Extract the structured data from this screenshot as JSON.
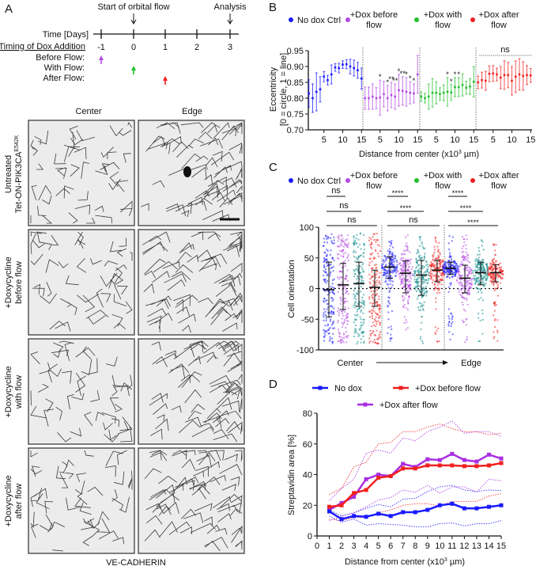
{
  "panel_labels": {
    "a": "A",
    "b": "B",
    "c": "C",
    "d": "D"
  },
  "panel_a": {
    "start_flow": "Start of orbital flow",
    "analysis": "Analysis",
    "time_label": "Time [Days]",
    "timing_label": "Timing of Dox Addition",
    "days": [
      "-1",
      "0",
      "1",
      "2",
      "3"
    ],
    "rows": [
      "Before Flow:",
      "With Flow:",
      "After Flow:"
    ],
    "arrow_colors": [
      "#b44be1",
      "#22c02a",
      "#f02020"
    ],
    "columns": [
      "Center",
      "Edge"
    ],
    "row_labels": [
      {
        "line1": "Untreated",
        "line2": "Tet-ON-PIK3CA",
        "sup": "E542K"
      },
      {
        "line1": "+Doxycycline",
        "line2": "before flow"
      },
      {
        "line1": "+Doxycycline",
        "line2": "with flow"
      },
      {
        "line1": "+Doxycycline",
        "line2": "after flow"
      }
    ],
    "stain": "VE-CADHERIN"
  },
  "chart_data": [
    {
      "id": "B",
      "type": "scatter",
      "legend": [
        {
          "name": "No dox Ctrl",
          "color": "#1a1aff"
        },
        {
          "name": "+Dox before flow",
          "line1": "+Dox before",
          "line2": "flow",
          "color": "#b44be1"
        },
        {
          "name": "+Dox with flow",
          "line1": "+Dox with",
          "line2": "flow",
          "color": "#22c02a"
        },
        {
          "name": "+Dox after flow",
          "line1": "+Dox after",
          "line2": "flow",
          "color": "#f02020"
        }
      ],
      "ylabel_1": "Eccentricity",
      "ylabel_2": "[0 = circle, 1 = line]",
      "xlabel": "Distance from center (x10",
      "xlabel_sup": "3",
      "xlabel_end": " µm)",
      "ylim": [
        0.7,
        0.95
      ],
      "yticks": [
        "0.70",
        "0.75",
        "0.80",
        "0.85",
        "0.90",
        "0.95"
      ],
      "xticks": [
        "5",
        "10",
        "15"
      ],
      "x": [
        1,
        2,
        3,
        4,
        5,
        6,
        7,
        8,
        9,
        10,
        11,
        12,
        13,
        14,
        15
      ],
      "series": [
        {
          "name": "No dox Ctrl",
          "mean": [
            0.815,
            0.8,
            0.82,
            0.828,
            0.868,
            0.857,
            0.875,
            0.897,
            0.895,
            0.906,
            0.907,
            0.9,
            0.895,
            0.888,
            0.862
          ],
          "err": [
            0.043,
            0.045,
            0.06,
            0.04,
            0.016,
            0.015,
            0.03,
            0.012,
            0.015,
            0.012,
            0.014,
            0.023,
            0.025,
            0.025,
            0.033
          ]
        },
        {
          "name": "+Dox before flow",
          "mean": [
            0.8,
            0.8,
            0.805,
            0.8,
            0.802,
            0.813,
            0.8,
            0.81,
            0.805,
            0.825,
            0.823,
            0.82,
            0.817,
            0.815,
            0.875
          ],
          "err": [
            0.035,
            0.035,
            0.04,
            0.033,
            0.055,
            0.04,
            0.04,
            0.04,
            0.04,
            0.05,
            0.045,
            0.045,
            0.035,
            0.03,
            0.06
          ],
          "stars": [
            "",
            "",
            "",
            "",
            "*",
            "",
            "*",
            "**",
            "**",
            "*",
            "**",
            "*",
            "*",
            "*",
            ""
          ]
        },
        {
          "name": "+Dox with flow",
          "mean": [
            0.805,
            0.8,
            0.805,
            0.817,
            0.817,
            0.813,
            0.817,
            0.82,
            0.818,
            0.835,
            0.835,
            0.842,
            0.833,
            0.837,
            0.852
          ],
          "err": [
            0.015,
            0.015,
            0.04,
            0.045,
            0.035,
            0.02,
            0.025,
            0.045,
            0.025,
            0.03,
            0.03,
            0.035,
            0.02,
            0.025,
            0.048
          ],
          "stars": [
            "",
            "",
            "",
            "",
            "",
            "",
            "",
            "*",
            "*",
            "*",
            "*",
            "",
            "",
            "",
            ""
          ]
        },
        {
          "name": "+Dox after flow",
          "mean": [
            0.85,
            0.857,
            0.855,
            0.877,
            0.878,
            0.875,
            0.865,
            0.873,
            0.873,
            0.855,
            0.868,
            0.875,
            0.87,
            0.873,
            0.872
          ],
          "err": [
            0.02,
            0.025,
            0.03,
            0.025,
            0.025,
            0.02,
            0.035,
            0.045,
            0.04,
            0.045,
            0.05,
            0.05,
            0.045,
            0.03,
            0.022
          ]
        }
      ],
      "annotation": "ns"
    },
    {
      "id": "C",
      "type": "scatter",
      "legend": [
        {
          "name": "No dox Ctrl",
          "color": "#1a1aff"
        },
        {
          "name": "+Dox before flow",
          "line1": "+Dox before",
          "line2": "flow",
          "color": "#b44be1"
        },
        {
          "name": "+Dox with flow",
          "line1": "+Dox with",
          "line2": "flow",
          "color": "#22c02a"
        },
        {
          "name": "+Dox after flow",
          "line1": "+Dox after",
          "line2": "flow",
          "color": "#f02020"
        }
      ],
      "point_colors": [
        "#1a1aff",
        "#b44be1",
        "#0f8a8a",
        "#f02020"
      ],
      "ylabel": "Cell orientation",
      "ylim": [
        -100,
        100
      ],
      "yticks": [
        "-100",
        "-50",
        "0",
        "50",
        "100"
      ],
      "xlabel_left": "Center",
      "xlabel_right": "Edge",
      "groups": [
        {
          "mean": [
            -2,
            6,
            8,
            2
          ],
          "lo": [
            -46,
            -34,
            -29,
            -29
          ],
          "hi": [
            43,
            41,
            43,
            30
          ],
          "sig": [
            "ns",
            "ns",
            "ns"
          ]
        },
        {
          "mean": [
            35,
            25,
            22,
            30
          ],
          "lo": [
            17,
            -7,
            -11,
            11
          ],
          "hi": [
            52,
            45,
            46,
            46
          ],
          "sig": [
            "****",
            "****",
            "ns"
          ]
        },
        {
          "mean": [
            33,
            17,
            26,
            26
          ],
          "lo": [
            23,
            -7,
            6,
            11
          ],
          "hi": [
            43,
            38,
            43,
            39
          ],
          "sig": [
            "****",
            "****",
            "****"
          ]
        }
      ]
    },
    {
      "id": "D",
      "type": "line",
      "ylabel": "Streptavidin area [%]",
      "xlabel": "Distance from center (x10",
      "xlabel_sup": "3",
      "xlabel_end": " µm)",
      "ylim": [
        0,
        80
      ],
      "xlim": [
        0,
        15
      ],
      "yticks": [
        "0",
        "20",
        "40",
        "60",
        "80"
      ],
      "xticks": [
        "0",
        "1",
        "2",
        "3",
        "4",
        "5",
        "6",
        "7",
        "8",
        "9",
        "10",
        "11",
        "12",
        "13",
        "14",
        "15"
      ],
      "x": [
        1,
        2,
        3,
        4,
        5,
        6,
        7,
        8,
        9,
        10,
        11,
        12,
        13,
        14,
        15
      ],
      "series": [
        {
          "name": "No dox",
          "color": "#1a1aff",
          "values": [
            16,
            11,
            13,
            12.5,
            14.5,
            13,
            15.5,
            15.5,
            17,
            20,
            21,
            18,
            18,
            19,
            20
          ],
          "upper": [
            17,
            13,
            15,
            18,
            20.5,
            19,
            24,
            24.5,
            29,
            32,
            33,
            30,
            29,
            30,
            29.5
          ],
          "lower": [
            13,
            9,
            11,
            7,
            8,
            7.5,
            7,
            6,
            6,
            8,
            8.5,
            6.5,
            8,
            8,
            10
          ]
        },
        {
          "name": "+Dox before flow",
          "color": "#f02020",
          "values": [
            19,
            20,
            28,
            30,
            38,
            39,
            44,
            44,
            46,
            46,
            46,
            45.5,
            45.5,
            46,
            47.5
          ],
          "upper": [
            27,
            31,
            45,
            48,
            60,
            61,
            68,
            68,
            71,
            73,
            70,
            68,
            68,
            66,
            67
          ],
          "lower": [
            11,
            10,
            12,
            12,
            15,
            17,
            20,
            21,
            21,
            19.5,
            22.5,
            22.5,
            22.5,
            26,
            27.5
          ]
        },
        {
          "name": "+Dox after flow",
          "color": "#a82ee0",
          "values": [
            17,
            21.5,
            25.5,
            37,
            40,
            39,
            47,
            45,
            50,
            49.5,
            53.5,
            49.5,
            48.5,
            53,
            50.5
          ],
          "upper": [
            23,
            31,
            37,
            54,
            56,
            54,
            64,
            62,
            68,
            71,
            75,
            67,
            68,
            68,
            65
          ],
          "lower": [
            10,
            13,
            15,
            19,
            23.5,
            25,
            30,
            28.5,
            33,
            28,
            32,
            32,
            28.5,
            37,
            36
          ]
        }
      ]
    }
  ]
}
